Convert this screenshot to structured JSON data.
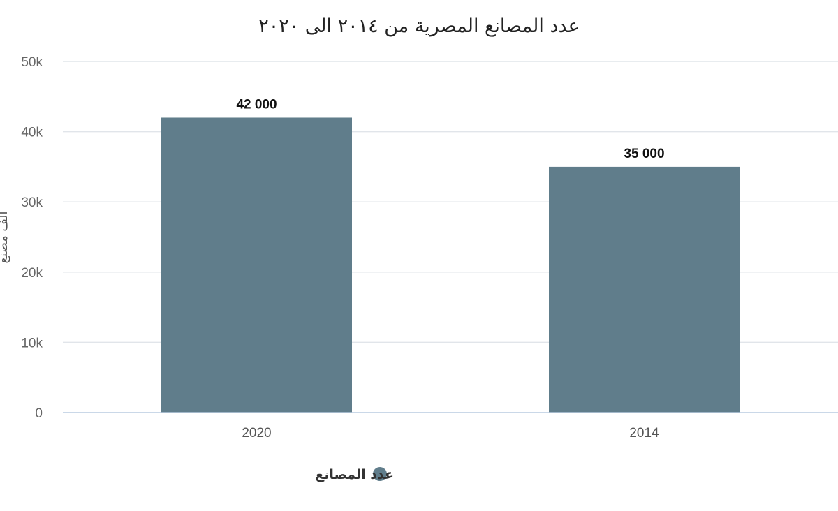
{
  "chart_data": {
    "type": "bar",
    "title": "عدد المصانع المصرية من ٢٠١٤ الى ٢٠٢٠",
    "ylabel": "الف مصنع",
    "xlabel": "",
    "categories": [
      "2020",
      "2014"
    ],
    "series": [
      {
        "name": "عدد المصانع",
        "values": [
          42000,
          35000
        ],
        "data_labels": [
          "42 000",
          "35 000"
        ],
        "color": "#607d8b"
      }
    ],
    "ylim": [
      0,
      50000
    ],
    "yticks": [
      0,
      10000,
      20000,
      30000,
      40000,
      50000
    ],
    "ytick_labels": [
      "0",
      "10k",
      "20k",
      "30k",
      "40k",
      "50k"
    ],
    "grid": true,
    "legend": "bottom-center",
    "colors": {
      "bar": "#607d8b",
      "grid": "#e1e5ea",
      "axis": "#b9cbe0"
    }
  }
}
